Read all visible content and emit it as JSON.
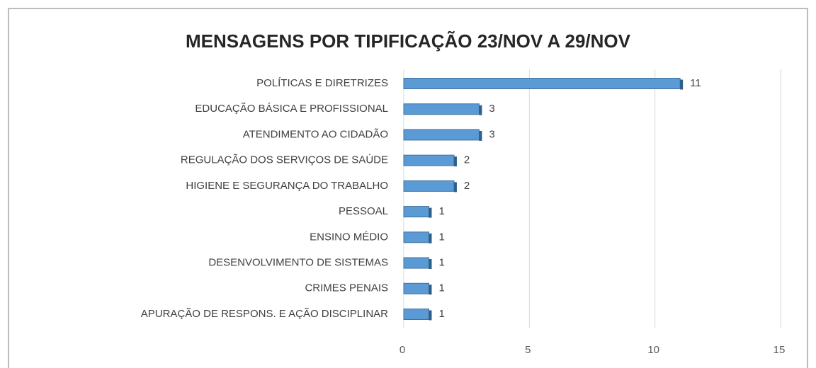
{
  "chart_data": {
    "type": "bar",
    "orientation": "horizontal",
    "title": "MENSAGENS  POR TIPIFICAÇÃO 23/NOV  A 29/NOV",
    "categories": [
      "POLÍTICAS E DIRETRIZES",
      "EDUCAÇÃO BÁSICA E PROFISSIONAL",
      "ATENDIMENTO AO CIDADÃO",
      "REGULAÇÃO DOS SERVIÇOS DE SAÚDE",
      "HIGIENE E SEGURANÇA DO TRABALHO",
      "PESSOAL",
      "ENSINO MÉDIO",
      "DESENVOLVIMENTO DE SISTEMAS",
      "CRIMES PENAIS",
      "APURAÇÃO DE RESPONS. E AÇÃO DISCIPLINAR"
    ],
    "values": [
      11,
      3,
      3,
      2,
      2,
      1,
      1,
      1,
      1,
      1
    ],
    "color": "#5b9bd5",
    "xlim": [
      0,
      15
    ],
    "xticks": [
      0,
      5,
      10,
      15
    ],
    "grid": true
  }
}
